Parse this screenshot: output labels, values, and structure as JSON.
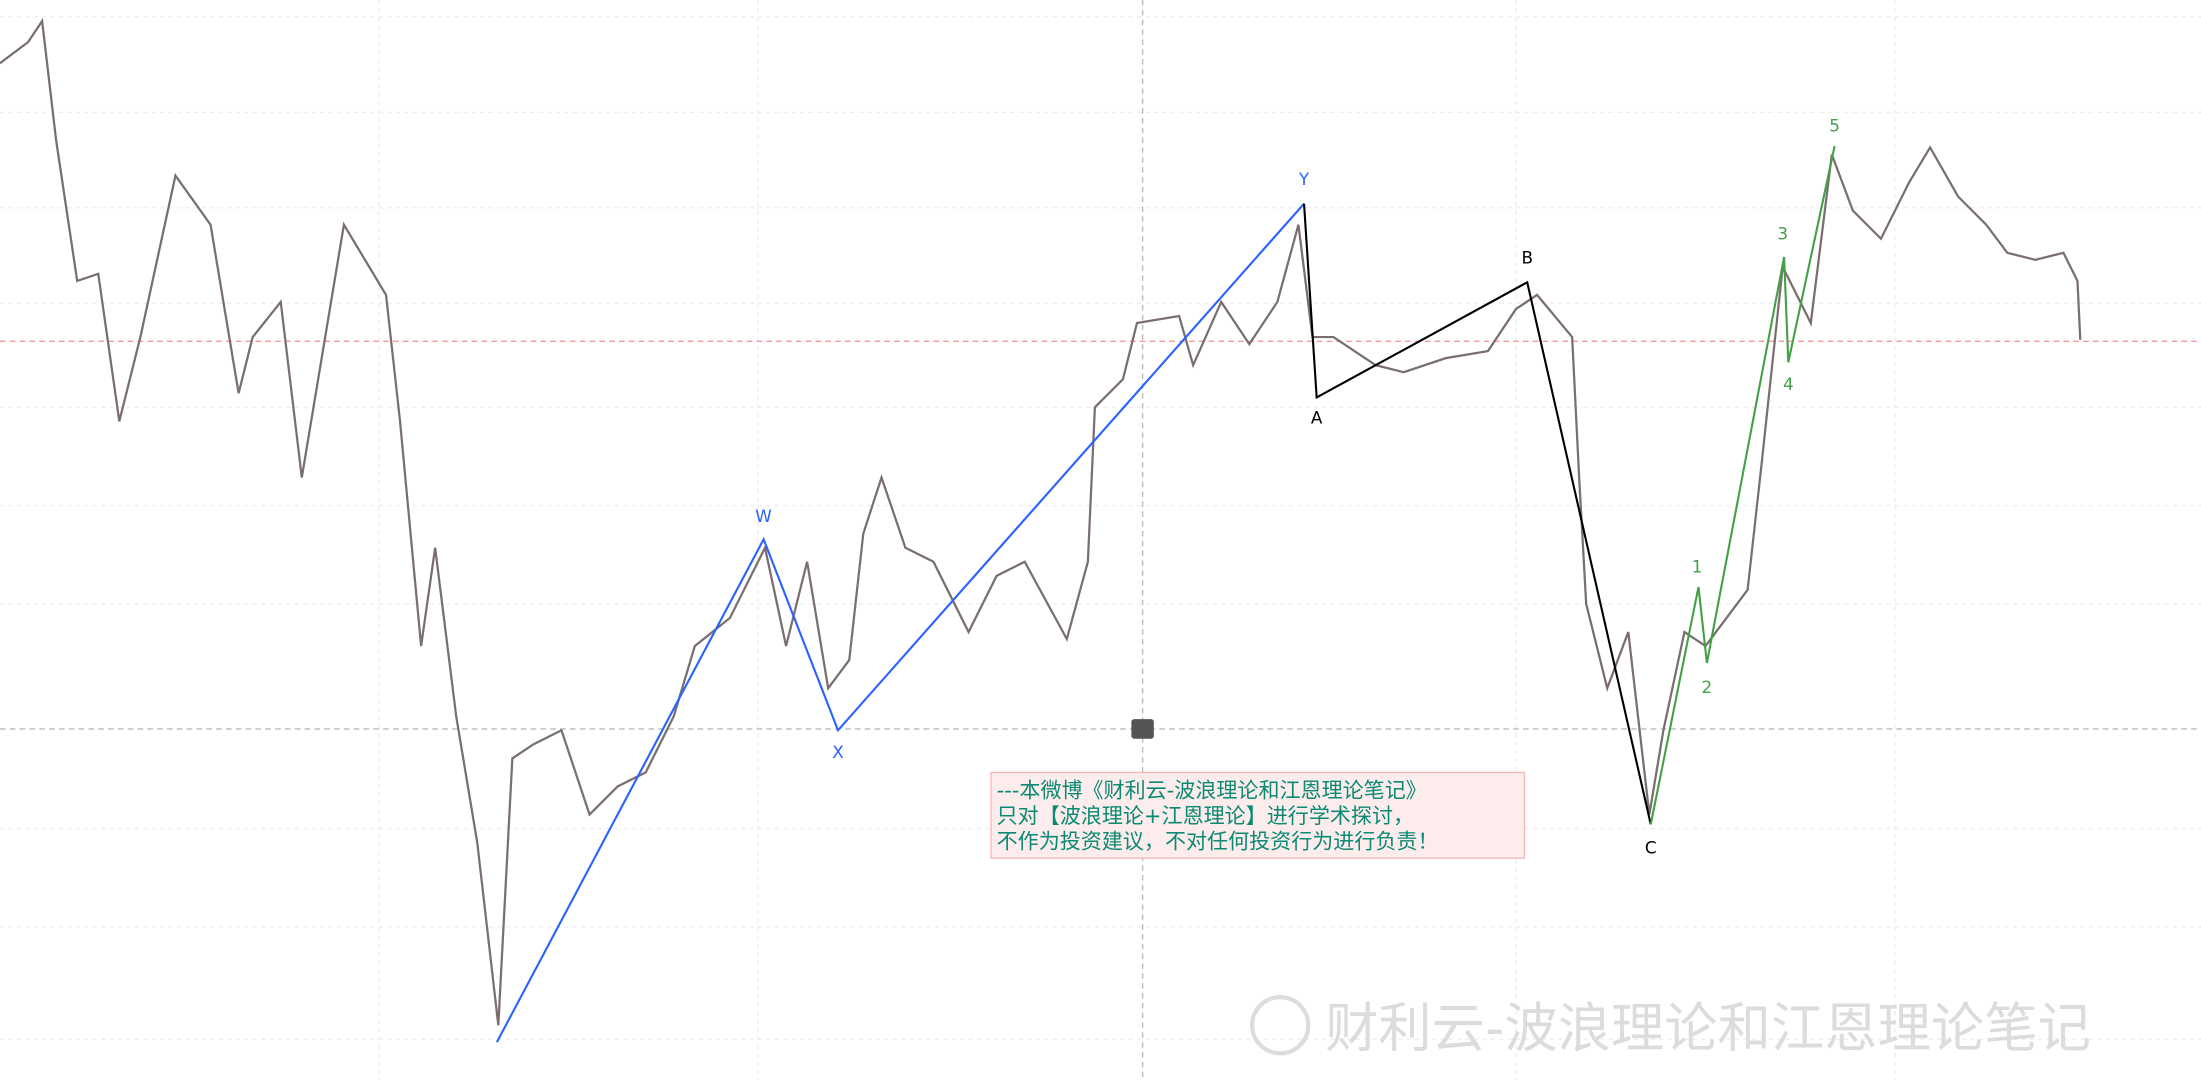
{
  "wave_labels": {
    "blue": [
      "W",
      "X",
      "Y"
    ],
    "black": [
      "A",
      "B",
      "C"
    ],
    "green": [
      "1",
      "2",
      "3",
      "4",
      "5"
    ]
  },
  "note": {
    "lines": [
      "---本微博《财利云-波浪理论和江恩理论笔记》",
      "只对【波浪理论+江恩理论】进行学术探讨，",
      "不作为投资建议，不对任何投资行为进行负责！"
    ]
  },
  "watermark": "财利云-波浪理论和江恩理论笔记"
}
